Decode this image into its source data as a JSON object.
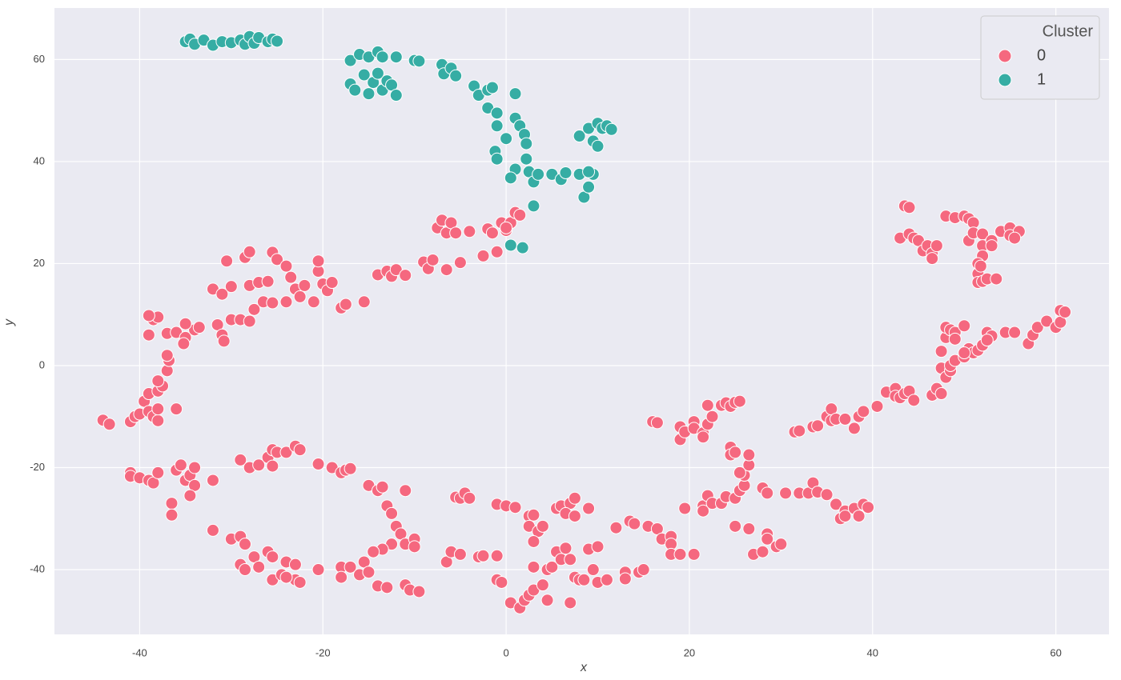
{
  "chart_data": {
    "type": "scatter",
    "xlabel": "x",
    "ylabel": "y",
    "xlim": [
      -49.3,
      65.8
    ],
    "ylim": [
      -52.7,
      70.1
    ],
    "xticks": [
      -40,
      -20,
      0,
      20,
      40,
      60
    ],
    "yticks": [
      -40,
      -20,
      0,
      20,
      40,
      60
    ],
    "grid": true,
    "legend": "upper right",
    "legend_title": "Cluster",
    "series": [
      {
        "name": "0",
        "color": "#f5687f",
        "x": [
          -44,
          -43.3,
          -41,
          -40.5,
          -40,
          -39.5,
          -39,
          -38.5,
          -38,
          -38,
          -39,
          -38,
          -37.5,
          -37,
          -36.8,
          -37,
          -38,
          -39,
          -38.5,
          -38,
          -37,
          -36,
          -35,
          -35.2,
          -34,
          -33.5,
          -35,
          -36,
          -39,
          -31.5,
          -31,
          -30.8,
          -30,
          -29,
          -28,
          -27.5,
          -26.5,
          -25.5,
          -24,
          -32,
          -31,
          -30,
          -30.5,
          -28,
          -28.5,
          -28,
          -27,
          -26,
          -25.5,
          -25,
          -24,
          -23.5,
          -23,
          -22.5,
          -22,
          -21,
          -20.5,
          -20.5,
          -20,
          -19.5,
          -19,
          -18,
          -17.5,
          -15.5,
          -14,
          -13,
          -12.5,
          -12,
          -11,
          -9,
          -8.5,
          -8,
          -7.5,
          -7,
          -6.5,
          -6,
          -5.5,
          -6.5,
          -5,
          -4,
          -2.5,
          -2,
          -1.5,
          -1,
          -0.5,
          0,
          0.5,
          1,
          1.5,
          0,
          -41,
          -41,
          -40,
          -39,
          -38.5,
          -38,
          -36,
          -35.5,
          -35,
          -34.5,
          -34,
          -34,
          -34.5,
          -36.5,
          -36.5,
          -32,
          -29,
          -28,
          -27,
          -26,
          -25.5,
          -25,
          -25.5,
          -24,
          -23,
          -22.5,
          -20.5,
          -19,
          -18,
          -17.5,
          -17,
          -15,
          -14,
          -13.5,
          -13,
          -12.5,
          -12,
          -11,
          -11.5,
          -11,
          -10,
          -10,
          -12.5,
          -13.5,
          -14.5,
          -32,
          -30,
          -29,
          -28.5,
          -29,
          -28.5,
          -27.5,
          -27,
          -26,
          -25.5,
          -25.5,
          -24,
          -23,
          -23,
          -22.5,
          -20.5,
          -18,
          -18,
          -17,
          -16,
          -15.5,
          -15,
          -14,
          -13,
          -11,
          -10.5,
          -9.5,
          -24.5,
          -24,
          -5.5,
          -5,
          -4.5,
          -4,
          -1,
          0,
          1,
          2.5,
          3,
          2.5,
          3.5,
          4,
          3,
          5.5,
          6,
          7,
          7.5,
          6.5,
          7.5,
          9,
          -6.5,
          -6,
          -5,
          -3,
          -2.5,
          -1,
          -1,
          -0.5,
          0.5,
          1.5,
          2,
          2.5,
          3,
          3,
          4,
          4.5,
          5,
          4.5,
          5.5,
          6,
          6.5,
          7,
          7.5,
          7,
          8,
          8.5,
          9,
          9.5,
          10,
          10,
          11,
          12,
          13,
          13,
          13.5,
          14,
          14.5,
          15,
          15.5,
          16.5,
          17,
          18,
          18,
          18,
          19,
          20.5,
          19.5,
          21.5,
          21.5,
          22,
          22.5,
          23.5,
          24,
          25,
          25,
          25.5,
          26,
          26,
          26.5,
          26.5,
          24.5,
          24.5,
          25,
          25.5,
          26.5,
          27,
          28,
          28,
          28.5,
          28.5,
          28.5,
          29.5,
          30,
          30.5,
          32,
          33,
          33.5,
          34,
          35,
          36,
          36.5,
          37,
          37,
          38,
          38.5,
          39,
          39.5,
          16,
          16.5,
          19,
          19,
          19.5,
          20.5,
          20.5,
          21.5,
          21.5,
          22,
          22.5,
          22,
          23.5,
          24,
          24.5,
          25,
          25.5,
          31.5,
          32,
          33.5,
          34,
          35,
          35.5,
          35.5,
          36,
          37,
          38,
          38.5,
          39,
          40.5,
          41.5,
          42.5,
          42.5,
          43,
          43.5,
          44,
          44.5,
          46.5,
          47,
          47.5,
          47.5,
          48,
          48.5,
          48.5,
          49,
          47.5,
          48,
          48,
          48.5,
          49,
          49,
          50,
          50.5,
          50,
          51,
          50,
          51.5,
          52,
          52.5,
          53,
          52.5,
          54.5,
          55.5,
          57,
          57.5,
          58,
          59,
          60,
          60.5,
          60.5,
          61,
          43.5,
          44,
          43,
          44,
          44.5,
          45,
          45.5,
          46,
          46.5,
          46.5,
          47,
          48,
          49,
          50,
          50.5,
          50.5,
          51,
          51,
          52,
          52,
          52,
          51.5,
          51.5,
          51.5,
          52,
          52.5,
          53,
          53,
          53.5,
          54,
          55,
          55,
          56,
          55.5,
          51.8
        ],
        "values": [
          -10.7,
          -11.5,
          -11,
          -10,
          -9.5,
          -7,
          -9,
          -10,
          -10.8,
          -8.5,
          -5.5,
          -5,
          -4,
          -1,
          1,
          2,
          -3,
          6,
          9,
          9.5,
          6.3,
          6.5,
          5.5,
          4.3,
          7,
          7.5,
          8.2,
          -8.5,
          9.8,
          8,
          6,
          4.8,
          9,
          9,
          8.7,
          11,
          12.5,
          12.3,
          12.5,
          15,
          14,
          15.5,
          20.5,
          15.7,
          21.2,
          22.3,
          16.3,
          16.5,
          22.2,
          20.8,
          19.5,
          17.3,
          15,
          13.5,
          15.7,
          12.5,
          18.5,
          20.5,
          16,
          14.7,
          16.3,
          11.3,
          12,
          12.5,
          17.8,
          18.5,
          17.5,
          18.8,
          17.7,
          20.3,
          19,
          20.7,
          27,
          28.5,
          26,
          28,
          26,
          18.8,
          20.2,
          26.3,
          21.5,
          26.8,
          26,
          22.3,
          28,
          26.5,
          28,
          30,
          29.5,
          27,
          -21,
          -21.7,
          -22,
          -22.5,
          -23,
          -21,
          -20.5,
          -19.5,
          -22.5,
          -21.5,
          -20,
          -23.5,
          -25.5,
          -27,
          -29.3,
          -22.5,
          -18.5,
          -20,
          -19.5,
          -18,
          -16.5,
          -17,
          -19.7,
          -17,
          -15.8,
          -16.5,
          -19.3,
          -20,
          -21,
          -20.5,
          -20.2,
          -23.5,
          -24.5,
          -23.8,
          -27.5,
          -29,
          -31.5,
          -24.5,
          -33,
          -35,
          -34,
          -35.5,
          -35,
          -36,
          -36.5,
          -32.3,
          -34,
          -33.5,
          -35,
          -39,
          -40,
          -37.5,
          -39.5,
          -36.5,
          -37.5,
          -42,
          -38.5,
          -39,
          -42,
          -42.5,
          -40,
          -39.5,
          -41.5,
          -39.5,
          -41,
          -38.5,
          -40.5,
          -43.2,
          -43.5,
          -43,
          -44,
          -44.3,
          -41,
          -41.5,
          -25.8,
          -26,
          -25,
          -26,
          -27.2,
          -27.5,
          -27.8,
          -29.5,
          -29.3,
          -31.5,
          -32.5,
          -31.5,
          -34.5,
          -28,
          -27.5,
          -27,
          -26,
          -29,
          -29.5,
          -28,
          -38.5,
          -36.5,
          -37,
          -37.5,
          -37.3,
          -37.3,
          -42,
          -42.5,
          -46.5,
          -47.5,
          -46,
          -45,
          -44,
          -39.5,
          -43,
          -40,
          -39.5,
          -46,
          -36.5,
          -38,
          -35.8,
          -38,
          -41.5,
          -46.5,
          -42,
          -42,
          -36,
          -40,
          -35.5,
          -42.5,
          -42,
          -31.8,
          -40.5,
          -41.8,
          -30.5,
          -31,
          -40.5,
          -40,
          -31.5,
          -32,
          -34,
          -33.5,
          -35,
          -37,
          -37,
          -37,
          -28,
          -27.5,
          -28.5,
          -25.5,
          -27,
          -27,
          -25.7,
          -26,
          -31.5,
          -24.5,
          -23.5,
          -21.5,
          -19.5,
          -17.5,
          -16,
          -17.5,
          -17,
          -21,
          -32,
          -37,
          -36.5,
          -24,
          -25,
          -33,
          -34,
          -35.5,
          -35,
          -25,
          -25,
          -25,
          -23,
          -24.8,
          -25.3,
          -27.2,
          -30,
          -28.5,
          -29.5,
          -28,
          -29.5,
          -27.2,
          -27.8,
          -11,
          -11.2,
          -12,
          -14.5,
          -13,
          -11,
          -12.3,
          -13.2,
          -14,
          -11.5,
          -10,
          -7.8,
          -7.8,
          -7.3,
          -8,
          -7.2,
          -7,
          -13,
          -12.8,
          -12,
          -11.8,
          -10,
          -8.5,
          -10.8,
          -10.5,
          -10.5,
          -12.3,
          -10,
          -9,
          -8,
          -5.2,
          -4.5,
          -6,
          -6.3,
          -5.5,
          -5,
          -6.8,
          -5.8,
          -4.5,
          -5.5,
          -0.5,
          -2.3,
          -1,
          0,
          1,
          2.8,
          5.5,
          7.5,
          7,
          6.5,
          5.2,
          7.8,
          3.3,
          1.7,
          2.5,
          2.5,
          3,
          4,
          6.5,
          5.8,
          5,
          6.5,
          6.5,
          4.3,
          6,
          7.5,
          8.7,
          7.5,
          10.8,
          8.5,
          10.5,
          31.3,
          31,
          25,
          25.8,
          25,
          24.5,
          22.5,
          23.5,
          22,
          21,
          23.5,
          29.3,
          29,
          29.3,
          28.8,
          24.5,
          28,
          26,
          25.8,
          23.5,
          21.5,
          20,
          18,
          16.3,
          16.5,
          17,
          24.5,
          23.5,
          17,
          26.3,
          27,
          25.5,
          26.3,
          25,
          19.5
        ]
      },
      {
        "name": "1",
        "color": "#36ada4",
        "x": [
          -35,
          -34.5,
          -34,
          -33,
          -32,
          -31,
          -30,
          -29,
          -28.5,
          -28,
          -27.5,
          -27,
          -26,
          -25.5,
          -25,
          -17,
          -16,
          -15,
          -14,
          -13.5,
          -12,
          -17,
          -16.5,
          -15.5,
          -15,
          -14.5,
          -14,
          -13.5,
          -13,
          -12.5,
          -12,
          -10,
          -9.5,
          -7,
          -6.8,
          -6,
          -5.5,
          -3.5,
          -3,
          -2,
          -1.5,
          -2,
          -1,
          1,
          0,
          -1,
          -1.2,
          -1,
          1,
          1.5,
          2,
          2.2,
          2.2,
          1,
          2.5,
          3,
          3.5,
          5,
          6,
          6.5,
          8,
          8.5,
          9,
          9.5,
          9,
          8,
          9,
          9.5,
          10,
          10,
          10.5,
          11,
          11.5,
          0.5,
          3,
          0.5,
          1.8
        ],
        "values": [
          63.5,
          64,
          63,
          63.8,
          62.8,
          63.5,
          63.3,
          63.8,
          63,
          64.5,
          63.2,
          64.3,
          63.5,
          64,
          63.6,
          59.8,
          61,
          60.5,
          61.5,
          60.5,
          60.5,
          55.2,
          54,
          57,
          53.3,
          55.5,
          57.3,
          54,
          55.8,
          55,
          53,
          59.8,
          59.7,
          59,
          57.2,
          58.3,
          56.8,
          54.8,
          53,
          54,
          54.5,
          50.5,
          49.5,
          53.3,
          44.5,
          47,
          42,
          40.5,
          48.5,
          47,
          45.3,
          43.5,
          40.5,
          38.5,
          38,
          36,
          37.5,
          37.5,
          36.5,
          37.8,
          37.5,
          33,
          35,
          37.5,
          38,
          45,
          46.5,
          44,
          43,
          47.5,
          46.5,
          47,
          46.3,
          36.8,
          31.3,
          23.6,
          23.1
        ]
      }
    ]
  }
}
